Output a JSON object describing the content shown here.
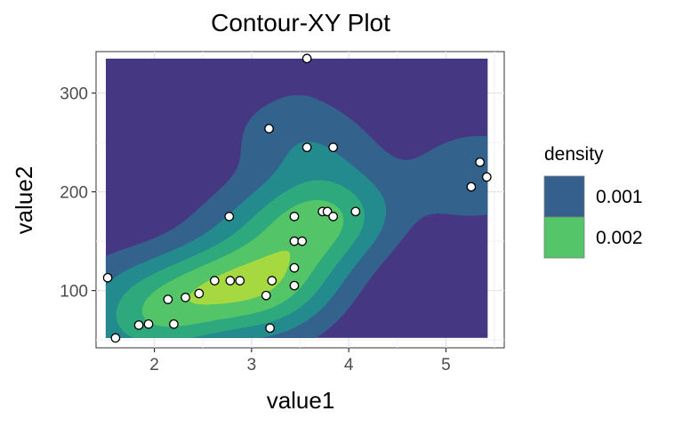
{
  "chart_data": {
    "type": "contour",
    "title": "Contour-XY Plot",
    "xlabel": "value1",
    "ylabel": "value2",
    "xlim": [
      1.4,
      5.6
    ],
    "ylim": [
      42,
      342
    ],
    "x_ticks": [
      2,
      3,
      4,
      5
    ],
    "y_ticks": [
      100,
      200,
      300
    ],
    "grid": true,
    "legend": {
      "title": "density",
      "position": "right",
      "entries": [
        {
          "label": "0.001",
          "color": "#35608d"
        },
        {
          "label": "0.002",
          "color": "#54c568"
        }
      ]
    },
    "fill_region": {
      "x": [
        1.5,
        5.43
      ],
      "y": [
        52,
        335
      ]
    },
    "level_colors": [
      "#453781",
      "#33638d",
      "#238a8d",
      "#2ea87d",
      "#53c467",
      "#a6d940"
    ],
    "points": [
      [
        3.57,
        335
      ],
      [
        3.18,
        264
      ],
      [
        3.57,
        245
      ],
      [
        3.84,
        245
      ],
      [
        5.35,
        230
      ],
      [
        5.42,
        215
      ],
      [
        5.26,
        205
      ],
      [
        2.77,
        175
      ],
      [
        3.44,
        175
      ],
      [
        3.73,
        180
      ],
      [
        3.78,
        180
      ],
      [
        3.84,
        175
      ],
      [
        4.07,
        180
      ],
      [
        3.44,
        150
      ],
      [
        3.52,
        150
      ],
      [
        3.44,
        123
      ],
      [
        1.52,
        113
      ],
      [
        2.62,
        110
      ],
      [
        2.78,
        110
      ],
      [
        2.88,
        110
      ],
      [
        3.21,
        110
      ],
      [
        3.44,
        105
      ],
      [
        2.46,
        97
      ],
      [
        3.15,
        95
      ],
      [
        2.14,
        91
      ],
      [
        2.32,
        93
      ],
      [
        1.84,
        65
      ],
      [
        1.94,
        66
      ],
      [
        2.2,
        66
      ],
      [
        3.19,
        62
      ],
      [
        1.6,
        52
      ]
    ]
  }
}
